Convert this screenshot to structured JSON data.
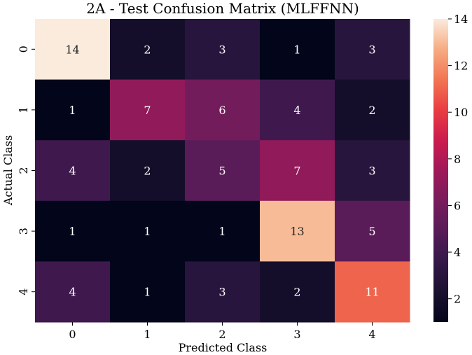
{
  "chart_data": {
    "type": "heatmap",
    "title": "2A - Test Confusion Matrix (MLFFNN)",
    "xlabel": "Predicted Class",
    "ylabel": "Actual Class",
    "x_categories": [
      "0",
      "1",
      "2",
      "3",
      "4"
    ],
    "y_categories": [
      "0",
      "1",
      "2",
      "3",
      "4"
    ],
    "values": [
      [
        14,
        2,
        3,
        1,
        3
      ],
      [
        1,
        7,
        6,
        4,
        2
      ],
      [
        4,
        2,
        5,
        7,
        3
      ],
      [
        1,
        1,
        1,
        13,
        5
      ],
      [
        4,
        1,
        3,
        2,
        11
      ]
    ],
    "colorbar": {
      "min": 1,
      "max": 14,
      "ticks": [
        2,
        4,
        6,
        8,
        10,
        12,
        14
      ],
      "colormap": "rocket"
    }
  }
}
